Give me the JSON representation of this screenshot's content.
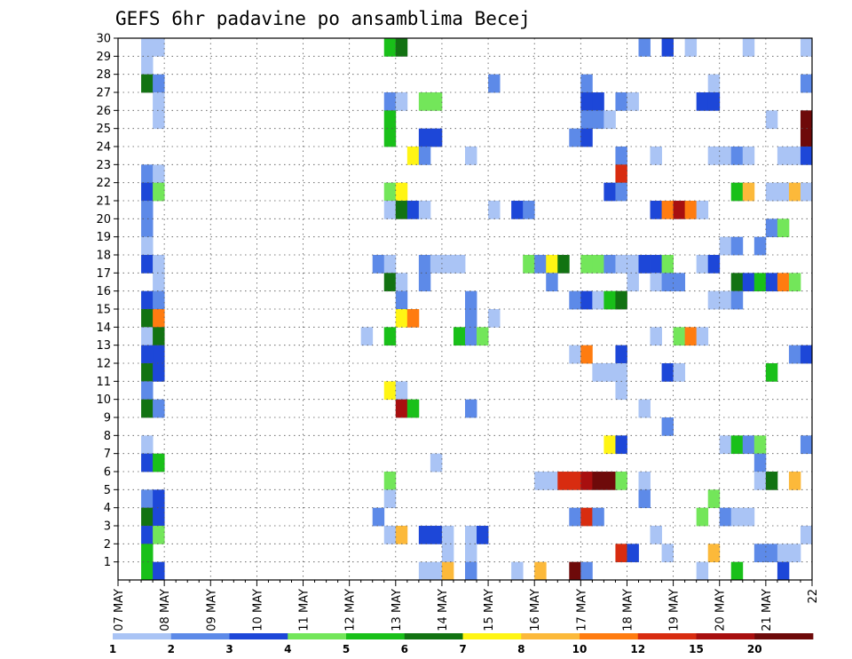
{
  "chart_data": {
    "type": "heatmap",
    "title": "GEFS 6hr padavine po ansamblima Becej",
    "xlabel": "",
    "ylabel": "",
    "x_tick_labels": [
      "07 MAY",
      "08 MAY",
      "09 MAY",
      "10 MAY",
      "11 MAY",
      "12 MAY",
      "13 MAY",
      "14 MAY",
      "15 MAY",
      "16 MAY",
      "17 MAY",
      "18 MAY",
      "19 MAY",
      "20 MAY",
      "21 MAY",
      "22"
    ],
    "y_tick_labels": [
      "1",
      "2",
      "3",
      "4",
      "5",
      "6",
      "7",
      "8",
      "9",
      "10",
      "11",
      "12",
      "13",
      "14",
      "15",
      "16",
      "17",
      "18",
      "19",
      "20",
      "21",
      "22",
      "23",
      "24",
      "25",
      "26",
      "27",
      "28",
      "29",
      "30"
    ],
    "xlim_steps": [
      0,
      60
    ],
    "ylim_members": [
      0,
      30
    ],
    "grid": true,
    "colorbar": {
      "ticks": [
        "1",
        "2",
        "3",
        "4",
        "5",
        "6",
        "7",
        "8",
        "10",
        "12",
        "15",
        "20"
      ],
      "colors": [
        "#aac4f5",
        "#5d8ae8",
        "#1d47d8",
        "#73e65a",
        "#19c019",
        "#127312",
        "#fff514",
        "#fcb93a",
        "#ff7c10",
        "#d82c10",
        "#a80f0f",
        "#6e0a0a"
      ]
    },
    "cells": [
      [
        2,
        30,
        1
      ],
      [
        3,
        30,
        1
      ],
      [
        23,
        30,
        5
      ],
      [
        24,
        30,
        6
      ],
      [
        45,
        30,
        2
      ],
      [
        47,
        30,
        3
      ],
      [
        49,
        30,
        1
      ],
      [
        54,
        30,
        1
      ],
      [
        59,
        30,
        1
      ],
      [
        2,
        29,
        1
      ],
      [
        2,
        28,
        6
      ],
      [
        3,
        28,
        2
      ],
      [
        32,
        28,
        2
      ],
      [
        40,
        28,
        2
      ],
      [
        51,
        28,
        1
      ],
      [
        59,
        28,
        2
      ],
      [
        3,
        27,
        1
      ],
      [
        23,
        27,
        2
      ],
      [
        24,
        27,
        1
      ],
      [
        26,
        27,
        4
      ],
      [
        27,
        27,
        4
      ],
      [
        40,
        27,
        3
      ],
      [
        41,
        27,
        3
      ],
      [
        43,
        27,
        2
      ],
      [
        44,
        27,
        1
      ],
      [
        50,
        27,
        3
      ],
      [
        51,
        27,
        3
      ],
      [
        3,
        26,
        1
      ],
      [
        40,
        26,
        2
      ],
      [
        41,
        26,
        2
      ],
      [
        42,
        26,
        1
      ],
      [
        56,
        26,
        1
      ],
      [
        59,
        26,
        12
      ],
      [
        23,
        26,
        5
      ],
      [
        23,
        25,
        5
      ],
      [
        26,
        25,
        3
      ],
      [
        27,
        25,
        3
      ],
      [
        39,
        25,
        2
      ],
      [
        40,
        25,
        3
      ],
      [
        59,
        25,
        12
      ],
      [
        25,
        24,
        7
      ],
      [
        26,
        24,
        2
      ],
      [
        30,
        24,
        1
      ],
      [
        43,
        24,
        2
      ],
      [
        46,
        24,
        1
      ],
      [
        51,
        24,
        1
      ],
      [
        52,
        24,
        1
      ],
      [
        53,
        24,
        2
      ],
      [
        54,
        24,
        1
      ],
      [
        57,
        24,
        1
      ],
      [
        58,
        24,
        1
      ],
      [
        59,
        24,
        3
      ],
      [
        2,
        23,
        2
      ],
      [
        3,
        23,
        1
      ],
      [
        43,
        23,
        10
      ],
      [
        2,
        22,
        3
      ],
      [
        3,
        22,
        4
      ],
      [
        23,
        22,
        4
      ],
      [
        24,
        22,
        7
      ],
      [
        42,
        22,
        3
      ],
      [
        43,
        22,
        2
      ],
      [
        53,
        22,
        5
      ],
      [
        54,
        22,
        8
      ],
      [
        56,
        22,
        1
      ],
      [
        57,
        22,
        1
      ],
      [
        58,
        22,
        8
      ],
      [
        59,
        22,
        1
      ],
      [
        2,
        21,
        2
      ],
      [
        23,
        21,
        1
      ],
      [
        24,
        21,
        6
      ],
      [
        25,
        21,
        3
      ],
      [
        26,
        21,
        1
      ],
      [
        32,
        21,
        1
      ],
      [
        34,
        21,
        3
      ],
      [
        35,
        21,
        2
      ],
      [
        46,
        21,
        3
      ],
      [
        47,
        21,
        9
      ],
      [
        48,
        21,
        11
      ],
      [
        49,
        21,
        9
      ],
      [
        50,
        21,
        1
      ],
      [
        2,
        20,
        2
      ],
      [
        56,
        20,
        2
      ],
      [
        57,
        20,
        4
      ],
      [
        2,
        19,
        1
      ],
      [
        52,
        19,
        1
      ],
      [
        53,
        19,
        2
      ],
      [
        55,
        19,
        2
      ],
      [
        2,
        18,
        3
      ],
      [
        3,
        18,
        1
      ],
      [
        22,
        18,
        2
      ],
      [
        23,
        18,
        1
      ],
      [
        26,
        18,
        2
      ],
      [
        27,
        18,
        1
      ],
      [
        28,
        18,
        1
      ],
      [
        29,
        18,
        1
      ],
      [
        35,
        18,
        4
      ],
      [
        36,
        18,
        2
      ],
      [
        37,
        18,
        7
      ],
      [
        38,
        18,
        6
      ],
      [
        40,
        18,
        4
      ],
      [
        41,
        18,
        4
      ],
      [
        42,
        18,
        2
      ],
      [
        43,
        18,
        1
      ],
      [
        44,
        18,
        1
      ],
      [
        45,
        18,
        3
      ],
      [
        46,
        18,
        3
      ],
      [
        47,
        18,
        4
      ],
      [
        50,
        18,
        1
      ],
      [
        51,
        18,
        3
      ],
      [
        3,
        17,
        1
      ],
      [
        23,
        17,
        6
      ],
      [
        24,
        17,
        1
      ],
      [
        26,
        17,
        2
      ],
      [
        37,
        17,
        2
      ],
      [
        44,
        17,
        1
      ],
      [
        46,
        17,
        1
      ],
      [
        47,
        17,
        2
      ],
      [
        48,
        17,
        2
      ],
      [
        53,
        17,
        6
      ],
      [
        54,
        17,
        3
      ],
      [
        55,
        17,
        5
      ],
      [
        56,
        17,
        3
      ],
      [
        57,
        17,
        9
      ],
      [
        58,
        17,
        4
      ],
      [
        2,
        16,
        3
      ],
      [
        3,
        16,
        2
      ],
      [
        24,
        16,
        2
      ],
      [
        30,
        16,
        2
      ],
      [
        39,
        16,
        2
      ],
      [
        40,
        16,
        3
      ],
      [
        41,
        16,
        1
      ],
      [
        42,
        16,
        5
      ],
      [
        43,
        16,
        6
      ],
      [
        51,
        16,
        1
      ],
      [
        52,
        16,
        1
      ],
      [
        53,
        16,
        2
      ],
      [
        2,
        15,
        6
      ],
      [
        3,
        15,
        9
      ],
      [
        24,
        15,
        7
      ],
      [
        25,
        15,
        9
      ],
      [
        30,
        15,
        2
      ],
      [
        32,
        15,
        1
      ],
      [
        2,
        14,
        1
      ],
      [
        3,
        14,
        6
      ],
      [
        21,
        14,
        1
      ],
      [
        23,
        14,
        5
      ],
      [
        29,
        14,
        5
      ],
      [
        30,
        14,
        2
      ],
      [
        31,
        14,
        4
      ],
      [
        46,
        14,
        1
      ],
      [
        48,
        14,
        4
      ],
      [
        49,
        14,
        9
      ],
      [
        50,
        14,
        1
      ],
      [
        2,
        13,
        3
      ],
      [
        3,
        13,
        3
      ],
      [
        39,
        13,
        1
      ],
      [
        40,
        13,
        9
      ],
      [
        43,
        13,
        3
      ],
      [
        58,
        13,
        2
      ],
      [
        59,
        13,
        3
      ],
      [
        2,
        12,
        6
      ],
      [
        3,
        12,
        3
      ],
      [
        41,
        12,
        1
      ],
      [
        42,
        12,
        1
      ],
      [
        43,
        12,
        1
      ],
      [
        47,
        12,
        3
      ],
      [
        48,
        12,
        1
      ],
      [
        56,
        12,
        5
      ],
      [
        2,
        11,
        2
      ],
      [
        23,
        11,
        7
      ],
      [
        24,
        11,
        1
      ],
      [
        43,
        11,
        1
      ],
      [
        2,
        10,
        6
      ],
      [
        3,
        10,
        2
      ],
      [
        24,
        10,
        11
      ],
      [
        25,
        10,
        5
      ],
      [
        30,
        10,
        2
      ],
      [
        45,
        10,
        1
      ],
      [
        47,
        9,
        2
      ],
      [
        2,
        8,
        1
      ],
      [
        42,
        8,
        7
      ],
      [
        43,
        8,
        3
      ],
      [
        52,
        8,
        1
      ],
      [
        53,
        8,
        5
      ],
      [
        54,
        8,
        2
      ],
      [
        55,
        8,
        4
      ],
      [
        59,
        8,
        2
      ],
      [
        2,
        7,
        3
      ],
      [
        3,
        7,
        5
      ],
      [
        27,
        7,
        1
      ],
      [
        55,
        7,
        2
      ],
      [
        55,
        6,
        1
      ],
      [
        56,
        6,
        6
      ],
      [
        58,
        6,
        8
      ],
      [
        23,
        6,
        4
      ],
      [
        36,
        6,
        1
      ],
      [
        37,
        6,
        1
      ],
      [
        38,
        6,
        10
      ],
      [
        39,
        6,
        10
      ],
      [
        40,
        6,
        11
      ],
      [
        41,
        6,
        12
      ],
      [
        42,
        6,
        12
      ],
      [
        43,
        6,
        4
      ],
      [
        45,
        6,
        1
      ],
      [
        2,
        5,
        2
      ],
      [
        3,
        5,
        3
      ],
      [
        23,
        5,
        1
      ],
      [
        45,
        5,
        2
      ],
      [
        51,
        5,
        4
      ],
      [
        2,
        4,
        6
      ],
      [
        3,
        4,
        3
      ],
      [
        22,
        4,
        2
      ],
      [
        39,
        4,
        2
      ],
      [
        40,
        4,
        10
      ],
      [
        41,
        4,
        2
      ],
      [
        50,
        4,
        4
      ],
      [
        52,
        4,
        2
      ],
      [
        53,
        4,
        1
      ],
      [
        54,
        4,
        1
      ],
      [
        2,
        3,
        3
      ],
      [
        3,
        3,
        4
      ],
      [
        23,
        3,
        1
      ],
      [
        24,
        3,
        8
      ],
      [
        26,
        3,
        3
      ],
      [
        27,
        3,
        3
      ],
      [
        28,
        3,
        1
      ],
      [
        30,
        3,
        1
      ],
      [
        31,
        3,
        3
      ],
      [
        46,
        3,
        1
      ],
      [
        59,
        3,
        1
      ],
      [
        2,
        2,
        5
      ],
      [
        28,
        2,
        1
      ],
      [
        30,
        2,
        1
      ],
      [
        43,
        2,
        10
      ],
      [
        44,
        2,
        3
      ],
      [
        47,
        2,
        1
      ],
      [
        51,
        2,
        8
      ],
      [
        55,
        2,
        2
      ],
      [
        56,
        2,
        2
      ],
      [
        57,
        2,
        1
      ],
      [
        58,
        2,
        1
      ],
      [
        2,
        1,
        5
      ],
      [
        3,
        1,
        3
      ],
      [
        26,
        1,
        1
      ],
      [
        27,
        1,
        1
      ],
      [
        28,
        1,
        8
      ],
      [
        30,
        1,
        2
      ],
      [
        34,
        1,
        1
      ],
      [
        36,
        1,
        8
      ],
      [
        39,
        1,
        12
      ],
      [
        40,
        1,
        2
      ],
      [
        50,
        1,
        1
      ],
      [
        53,
        1,
        5
      ],
      [
        57,
        1,
        3
      ]
    ]
  }
}
